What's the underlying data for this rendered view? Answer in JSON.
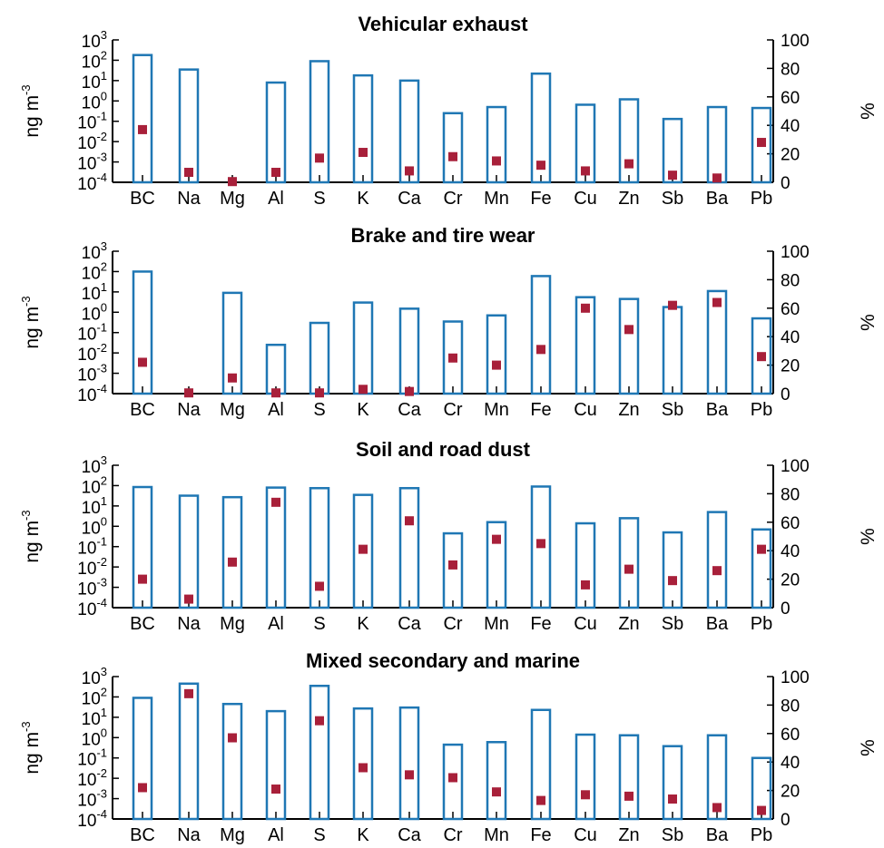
{
  "chart_data": [
    {
      "type": "bar",
      "title": "Vehicular exhaust",
      "categories": [
        "BC",
        "Na",
        "Mg",
        "Al",
        "S",
        "K",
        "Ca",
        "Cr",
        "Mn",
        "Fe",
        "Cu",
        "Zn",
        "Sb",
        "Ba",
        "Pb"
      ],
      "ylabel": "ng m-3",
      "y2label": "%",
      "yscale": "log",
      "ylim": [
        0.0001,
        1000
      ],
      "y2lim": [
        0,
        100
      ],
      "series": [
        {
          "axis": "left",
          "style": "bar-outline",
          "color": "#1f77b4",
          "values": [
            180,
            35,
            0,
            8,
            90,
            18,
            10,
            0.25,
            0.5,
            22,
            0.65,
            1.2,
            0.13,
            0.5,
            0.45
          ]
        },
        {
          "axis": "right",
          "style": "square-marker",
          "color": "#a8203a",
          "values": [
            37,
            7,
            0.5,
            7,
            17,
            21,
            8,
            18,
            15,
            12,
            8,
            13,
            5,
            3,
            28
          ]
        }
      ]
    },
    {
      "type": "bar",
      "title": "Brake and tire wear",
      "categories": [
        "BC",
        "Na",
        "Mg",
        "Al",
        "S",
        "K",
        "Ca",
        "Cr",
        "Mn",
        "Fe",
        "Cu",
        "Zn",
        "Sb",
        "Ba",
        "Pb"
      ],
      "ylabel": "ng m-3",
      "y2label": "%",
      "yscale": "log",
      "ylim": [
        0.0001,
        1000
      ],
      "y2lim": [
        0,
        100
      ],
      "series": [
        {
          "axis": "left",
          "style": "bar-outline",
          "color": "#1f77b4",
          "values": [
            100,
            0,
            9,
            0.025,
            0.3,
            3,
            1.5,
            0.35,
            0.7,
            60,
            5.5,
            4.5,
            1.8,
            11,
            0.5
          ]
        },
        {
          "axis": "right",
          "style": "square-marker",
          "color": "#a8203a",
          "values": [
            22,
            0.5,
            11,
            0.5,
            0.5,
            3,
            1.5,
            25,
            20,
            31,
            60,
            45,
            62,
            64,
            26
          ]
        }
      ]
    },
    {
      "type": "bar",
      "title": "Soil and road dust",
      "categories": [
        "BC",
        "Na",
        "Mg",
        "Al",
        "S",
        "K",
        "Ca",
        "Cr",
        "Mn",
        "Fe",
        "Cu",
        "Zn",
        "Sb",
        "Ba",
        "Pb"
      ],
      "ylabel": "ng m-3",
      "y2label": "%",
      "yscale": "log",
      "ylim": [
        0.0001,
        1000
      ],
      "y2lim": [
        0,
        100
      ],
      "series": [
        {
          "axis": "left",
          "style": "bar-outline",
          "color": "#1f77b4",
          "values": [
            85,
            32,
            27,
            80,
            75,
            35,
            75,
            0.45,
            1.6,
            90,
            1.4,
            2.5,
            0.5,
            5,
            0.7
          ]
        },
        {
          "axis": "right",
          "style": "square-marker",
          "color": "#a8203a",
          "values": [
            20,
            6,
            32,
            74,
            15,
            41,
            61,
            30,
            48,
            45,
            16,
            27,
            19,
            26,
            41
          ]
        }
      ]
    },
    {
      "type": "bar",
      "title": "Mixed secondary and marine",
      "categories": [
        "BC",
        "Na",
        "Mg",
        "Al",
        "S",
        "K",
        "Ca",
        "Cr",
        "Mn",
        "Fe",
        "Cu",
        "Zn",
        "Sb",
        "Ba",
        "Pb"
      ],
      "ylabel": "ng m-3",
      "y2label": "%",
      "yscale": "log",
      "ylim": [
        0.0001,
        1000
      ],
      "y2lim": [
        0,
        100
      ],
      "series": [
        {
          "axis": "left",
          "style": "bar-outline",
          "color": "#1f77b4",
          "values": [
            90,
            450,
            45,
            20,
            350,
            27,
            30,
            0.45,
            0.6,
            23,
            1.4,
            1.3,
            0.38,
            1.3,
            0.1
          ]
        },
        {
          "axis": "right",
          "style": "square-marker",
          "color": "#a8203a",
          "values": [
            22,
            88,
            57,
            21,
            69,
            36,
            31,
            29,
            19,
            13,
            17,
            16,
            14,
            8,
            6
          ]
        }
      ]
    }
  ],
  "axis_ticks": {
    "left": [
      {
        "base": "10",
        "exp": "3"
      },
      {
        "base": "10",
        "exp": "2"
      },
      {
        "base": "10",
        "exp": "1"
      },
      {
        "base": "10",
        "exp": "0"
      },
      {
        "base": "10",
        "exp": "-1"
      },
      {
        "base": "10",
        "exp": "-2"
      },
      {
        "base": "10",
        "exp": "-3"
      },
      {
        "base": "10",
        "exp": "-4"
      }
    ],
    "right": [
      "100",
      "80",
      "60",
      "40",
      "20",
      "0"
    ]
  },
  "axis_titles": {
    "left_base": "ng m",
    "left_exp": "-3",
    "right": "%"
  }
}
